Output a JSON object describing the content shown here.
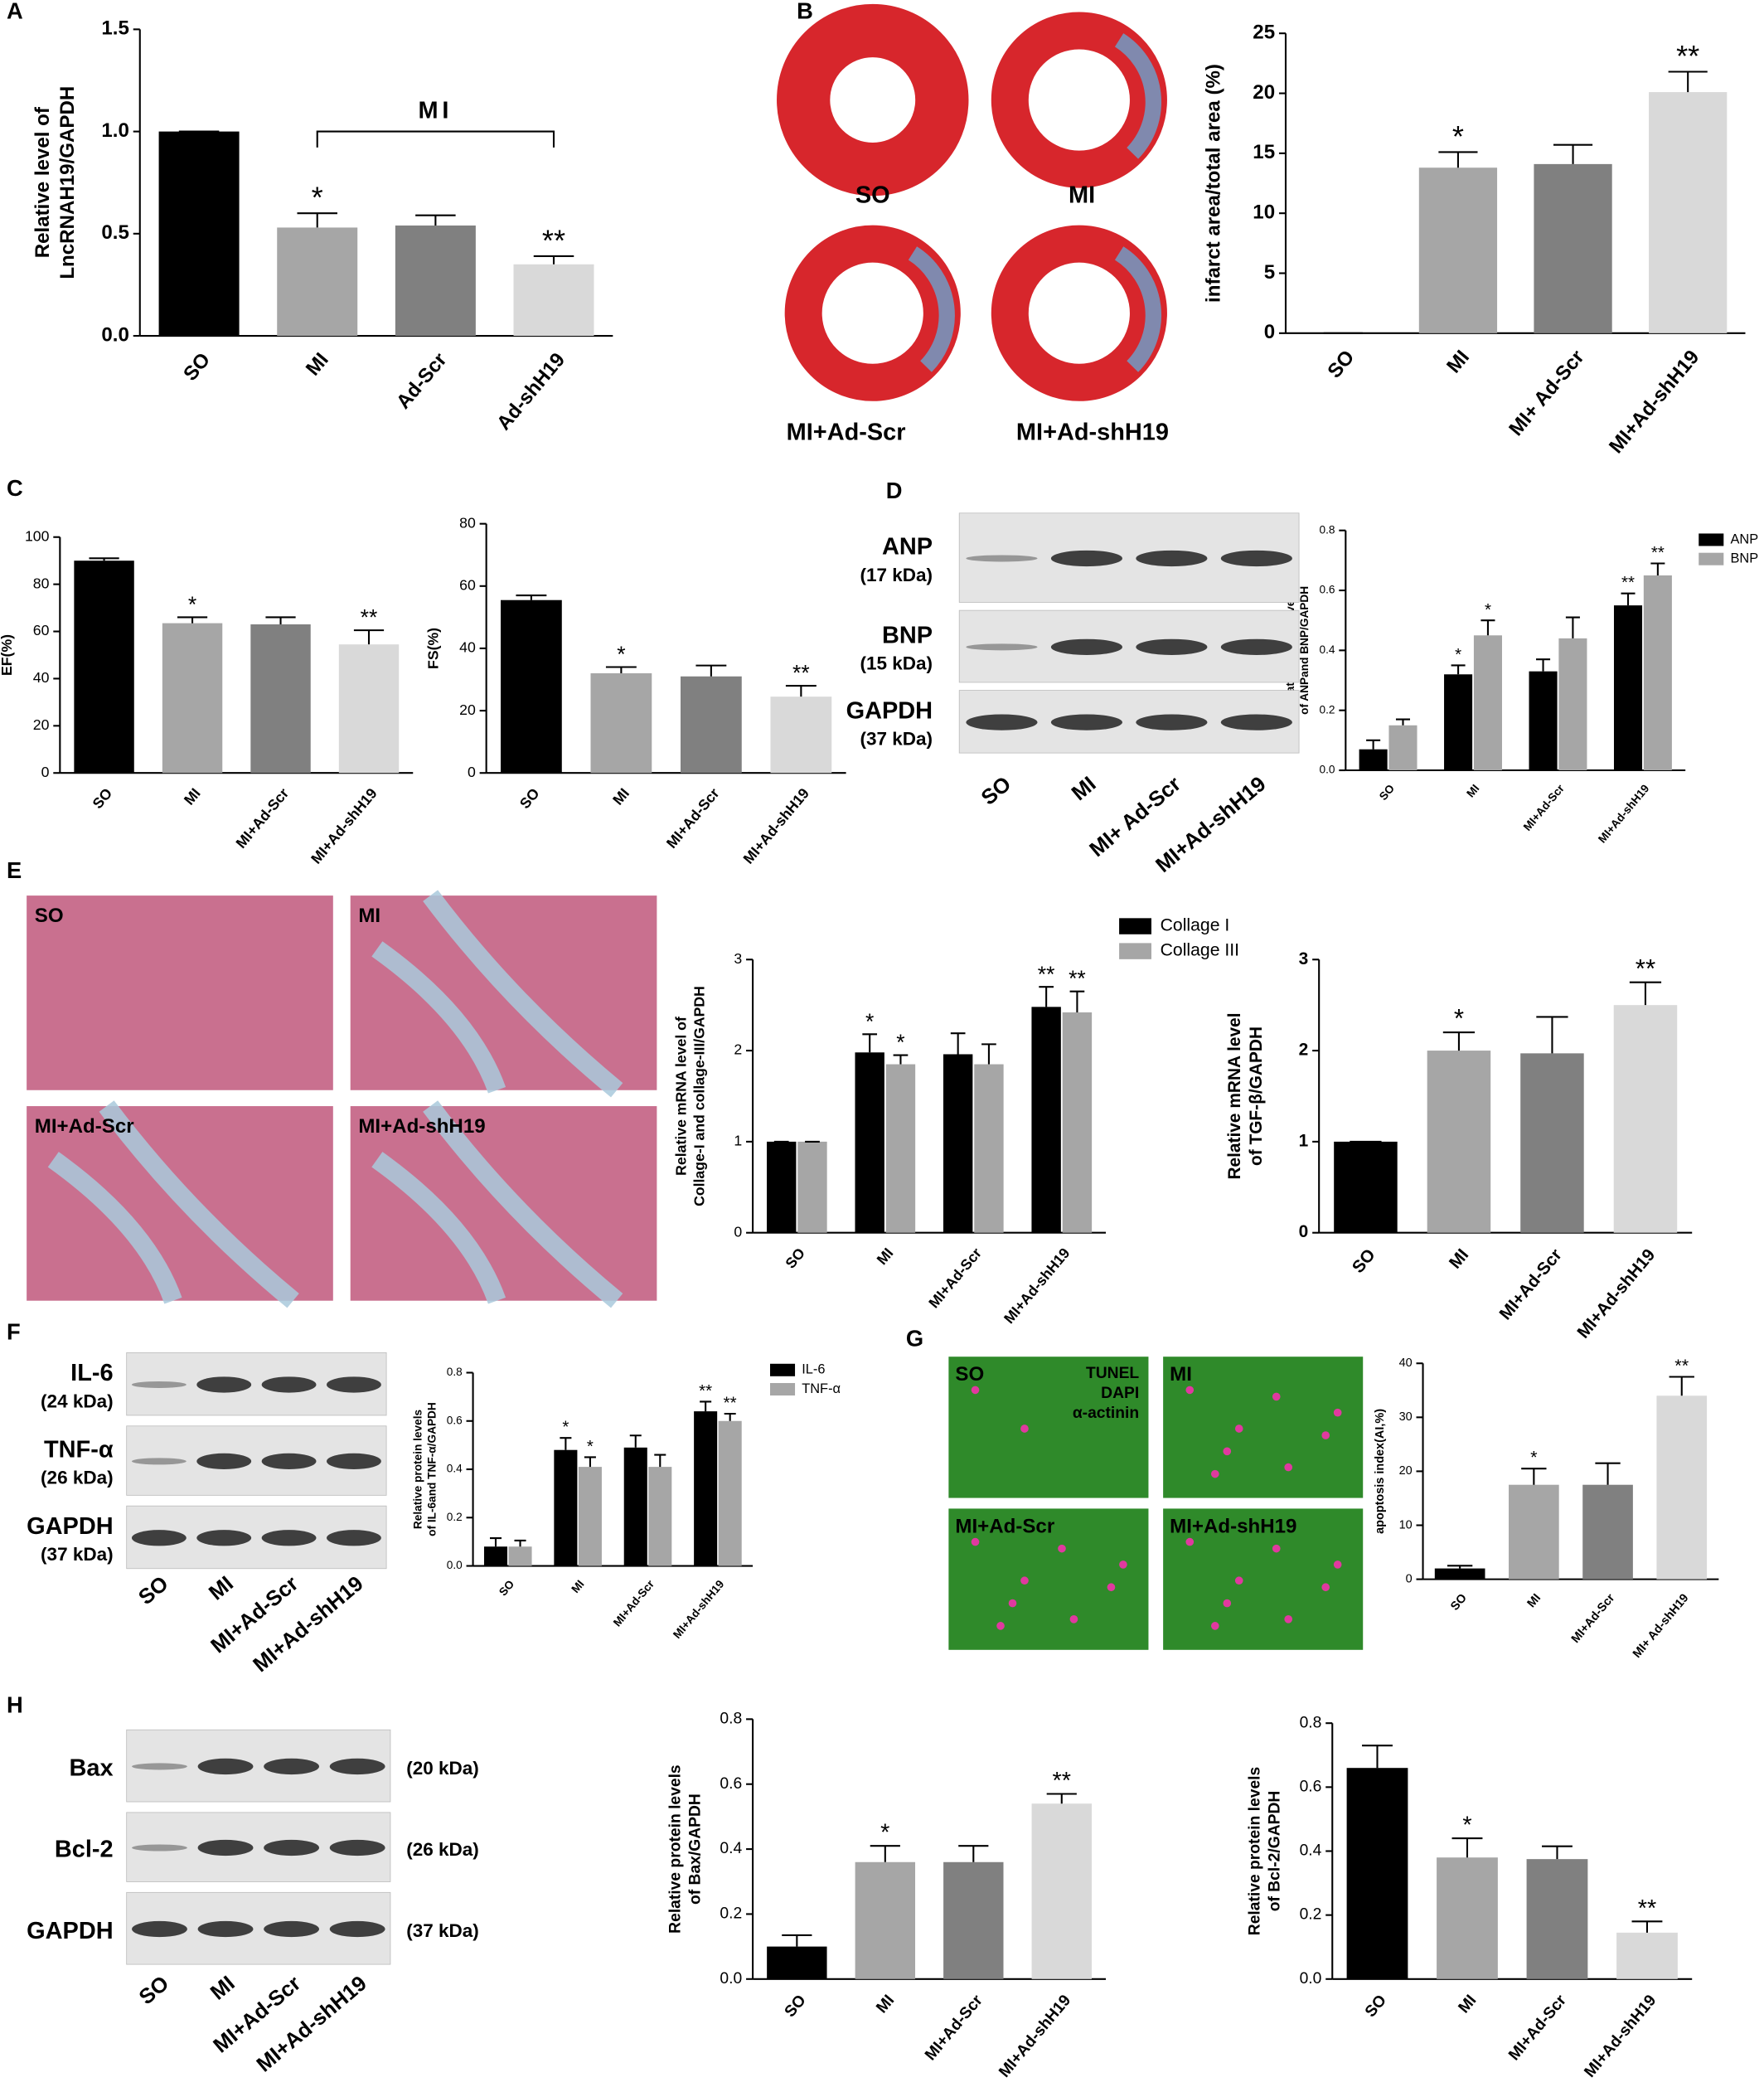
{
  "panel_letters": [
    "A",
    "B",
    "C",
    "D",
    "E",
    "F",
    "G",
    "H"
  ],
  "chart_data": [
    {
      "type": "bar",
      "categories": [
        "SO",
        "MI",
        "Ad-Scr",
        "Ad-shH19"
      ],
      "values": [
        1.0,
        0.53,
        0.54,
        0.35
      ],
      "errors": [
        0,
        0.07,
        0.05,
        0.04
      ],
      "colors": [
        "#000000",
        "#a6a6a6",
        "#808080",
        "#d9d9d9"
      ],
      "sig": [
        null,
        "*",
        null,
        "**"
      ],
      "ylim": [
        0,
        1.5
      ],
      "yticks": [
        {
          "value": 0,
          "label": "0.0"
        },
        0.5,
        {
          "value": 1,
          "label": "1.0"
        },
        1.5
      ],
      "ylabel": [
        "Relative level of",
        "LncRNAH19/GAPDH"
      ],
      "bracket_label": "MI"
    },
    {
      "type": "bar",
      "categories": [
        "SO",
        "MI",
        "MI+ Ad-Scr",
        "MI+Ad-shH19"
      ],
      "values": [
        0,
        13.8,
        14.1,
        20.1
      ],
      "errors": [
        0,
        1.3,
        1.6,
        1.7
      ],
      "colors": [
        "#000000",
        "#a6a6a6",
        "#808080",
        "#d9d9d9"
      ],
      "sig": [
        null,
        "*",
        null,
        "**"
      ],
      "ylim": [
        0,
        25
      ],
      "yticks": [
        0,
        5,
        10,
        15,
        20,
        25
      ],
      "ylabel": [
        "infarct area/total area (%)"
      ]
    },
    {
      "type": "bar",
      "categories": [
        "SO",
        "MI",
        "MI+Ad-Scr",
        "MI+Ad-shH19"
      ],
      "values": [
        90,
        63.5,
        63,
        54.5
      ],
      "errors": [
        1,
        2.5,
        3,
        6
      ],
      "colors": [
        "#000000",
        "#a6a6a6",
        "#808080",
        "#d9d9d9"
      ],
      "sig": [
        null,
        "*",
        null,
        "**"
      ],
      "ylim": [
        0,
        100
      ],
      "yticks": [
        0,
        20,
        40,
        60,
        80,
        100
      ],
      "ylabel": [
        "EF(%)"
      ]
    },
    {
      "type": "bar",
      "categories": [
        "SO",
        "MI",
        "MI+Ad-Scr",
        "MI+Ad-shH19"
      ],
      "values": [
        55.5,
        32,
        31,
        24.5
      ],
      "errors": [
        1.5,
        2,
        3.5,
        3.5
      ],
      "colors": [
        "#000000",
        "#a6a6a6",
        "#808080",
        "#d9d9d9"
      ],
      "sig": [
        null,
        "*",
        null,
        "**"
      ],
      "ylim": [
        0,
        80
      ],
      "yticks": [
        0,
        20,
        40,
        60,
        80
      ],
      "ylabel": [
        "FS(%)"
      ]
    },
    {
      "type": "grouped_bar",
      "categories": [
        "SO",
        "MI",
        "MI+Ad-Scr",
        "MI+Ad-shH19"
      ],
      "series": [
        {
          "name": "ANP",
          "color": "#000000",
          "values": [
            0.07,
            0.32,
            0.33,
            0.55
          ],
          "errors": [
            0.03,
            0.03,
            0.04,
            0.04
          ],
          "sig": [
            null,
            "*",
            null,
            "**"
          ]
        },
        {
          "name": "BNP",
          "color": "#a6a6a6",
          "values": [
            0.15,
            0.45,
            0.44,
            0.65
          ],
          "errors": [
            0.02,
            0.05,
            0.07,
            0.04
          ],
          "sig": [
            null,
            "*",
            null,
            "**"
          ]
        }
      ],
      "ylim": [
        0,
        0.8
      ],
      "yticks": [
        {
          "value": 0,
          "label": "0.0"
        },
        0.2,
        0.4,
        0.6,
        0.8
      ],
      "ylabel": [
        "Relative protein levels",
        "of ANPand BNP/GAPDH"
      ]
    },
    {
      "type": "grouped_bar",
      "categories": [
        "SO",
        "MI",
        "MI+Ad-Scr",
        "MI+Ad-shH19"
      ],
      "series": [
        {
          "name": "Collage I",
          "color": "#000000",
          "values": [
            1,
            1.98,
            1.96,
            2.48
          ],
          "errors": [
            0,
            0.2,
            0.23,
            0.22
          ],
          "sig": [
            null,
            "*",
            null,
            "**"
          ]
        },
        {
          "name": "Collage III",
          "color": "#a6a6a6",
          "values": [
            1,
            1.85,
            1.85,
            2.42
          ],
          "errors": [
            0,
            0.1,
            0.22,
            0.23
          ],
          "sig": [
            null,
            "*",
            null,
            "**"
          ]
        }
      ],
      "ylim": [
        0,
        3
      ],
      "yticks": [
        0,
        1,
        2,
        3
      ],
      "ylabel": [
        "Relative mRNA level  of",
        "Collage-I and collage-III/GAPDH"
      ]
    },
    {
      "type": "bar",
      "categories": [
        "SO",
        "MI",
        "MI+Ad-Scr",
        "MI+Ad-shH19"
      ],
      "values": [
        1,
        2.0,
        1.97,
        2.5
      ],
      "errors": [
        0,
        0.2,
        0.4,
        0.25
      ],
      "colors": [
        "#000000",
        "#a6a6a6",
        "#808080",
        "#d9d9d9"
      ],
      "sig": [
        null,
        "*",
        null,
        "**"
      ],
      "ylim": [
        0,
        3
      ],
      "yticks": [
        0,
        1,
        2,
        3
      ],
      "ylabel": [
        "Relative mRNA level",
        "of TGF-β/GAPDH"
      ]
    },
    {
      "type": "grouped_bar",
      "categories": [
        "SO",
        "MI",
        "MI+Ad-Scr",
        "MI+Ad-shH19"
      ],
      "series": [
        {
          "name": "IL-6",
          "color": "#000000",
          "values": [
            0.08,
            0.48,
            0.49,
            0.64
          ],
          "errors": [
            0.035,
            0.05,
            0.05,
            0.04
          ],
          "sig": [
            null,
            "*",
            null,
            "**"
          ]
        },
        {
          "name": "TNF-α",
          "color": "#a6a6a6",
          "values": [
            0.08,
            0.41,
            0.41,
            0.6
          ],
          "errors": [
            0.025,
            0.04,
            0.05,
            0.03
          ],
          "sig": [
            null,
            "*",
            null,
            "**"
          ]
        }
      ],
      "ylim": [
        0,
        0.8
      ],
      "yticks": [
        {
          "value": 0,
          "label": "0.0"
        },
        0.2,
        0.4,
        0.6,
        0.8
      ],
      "ylabel": [
        "Relative protein levels",
        "of IL-6and TNF-α/GAPDH"
      ]
    },
    {
      "type": "bar",
      "categories": [
        "SO",
        "MI",
        "MI+Ad-Scr",
        "MI+ Ad-shH19"
      ],
      "values": [
        2,
        17.5,
        17.5,
        34
      ],
      "errors": [
        0.5,
        3,
        4,
        3.5
      ],
      "colors": [
        "#000000",
        "#a6a6a6",
        "#808080",
        "#d9d9d9"
      ],
      "sig": [
        null,
        "*",
        null,
        "**"
      ],
      "ylim": [
        0,
        40
      ],
      "yticks": [
        0,
        10,
        20,
        30,
        40
      ],
      "ylabel": [
        "apoptosis index(AI,%)"
      ]
    },
    {
      "type": "bar",
      "categories": [
        "SO",
        "MI",
        "MI+Ad-Scr",
        "MI+Ad-shH19"
      ],
      "values": [
        0.1,
        0.36,
        0.36,
        0.54
      ],
      "errors": [
        0.035,
        0.05,
        0.05,
        0.03
      ],
      "colors": [
        "#000000",
        "#a6a6a6",
        "#808080",
        "#d9d9d9"
      ],
      "sig": [
        null,
        "*",
        null,
        "**"
      ],
      "ylim": [
        0,
        0.8
      ],
      "yticks": [
        {
          "value": 0,
          "label": "0.0"
        },
        0.2,
        0.4,
        0.6,
        0.8
      ],
      "ylabel": [
        "Relative protein levels",
        "of Bax/GAPDH"
      ]
    },
    {
      "type": "bar",
      "categories": [
        "SO",
        "MI",
        "MI+Ad-Scr",
        "MI+Ad-shH19"
      ],
      "values": [
        0.66,
        0.38,
        0.375,
        0.145
      ],
      "errors": [
        0.07,
        0.06,
        0.04,
        0.035
      ],
      "colors": [
        "#000000",
        "#a6a6a6",
        "#808080",
        "#d9d9d9"
      ],
      "sig": [
        null,
        "*",
        null,
        "**"
      ],
      "ylim": [
        0,
        0.8
      ],
      "yticks": [
        {
          "value": 0,
          "label": "0.0"
        },
        0.2,
        0.4,
        0.6,
        0.8
      ],
      "ylabel": [
        "Relative protein levels",
        "of Bcl-2/GAPDH"
      ]
    }
  ],
  "blots": [
    {
      "rows": [
        {
          "name": "ANP",
          "size": "(17 kDa)"
        },
        {
          "name": "BNP",
          "size": "(15 kDa)"
        },
        {
          "name": "GAPDH",
          "size": "(37 kDa)"
        }
      ],
      "categories": [
        "SO",
        "MI",
        "MI+ Ad-Scr",
        "MI+Ad-shH19"
      ]
    },
    {
      "rows": [
        {
          "name": "IL-6",
          "size": "(24 kDa)"
        },
        {
          "name": "TNF-α",
          "size": "(26 kDa)"
        },
        {
          "name": "GAPDH",
          "size": "(37 kDa)"
        }
      ],
      "categories": [
        "SO",
        "MI",
        "MI+Ad-Scr",
        "MI+Ad-shH19"
      ]
    },
    {
      "rows": [
        {
          "name": "Bax",
          "size": "(20 kDa)"
        },
        {
          "name": "Bcl-2",
          "size": "(26 kDa)"
        },
        {
          "name": "GAPDH",
          "size": "(37 kDa)"
        }
      ],
      "categories": [
        "SO",
        "MI",
        "MI+Ad-Scr",
        "MI+Ad-shH19"
      ]
    }
  ],
  "images": [
    {
      "labels": [
        "SO",
        "MI",
        "MI+Ad-Scr",
        "MI+Ad-shH19"
      ]
    },
    {
      "labels": [
        "SO",
        "MI",
        "MI+Ad-Scr",
        "MI+Ad-shH19"
      ]
    },
    {
      "labels": [
        "SO",
        "MI",
        "MI+Ad-Scr",
        "MI+Ad-shH19"
      ],
      "stains": [
        "TUNEL",
        "DAPI",
        "α-actinin"
      ]
    }
  ]
}
